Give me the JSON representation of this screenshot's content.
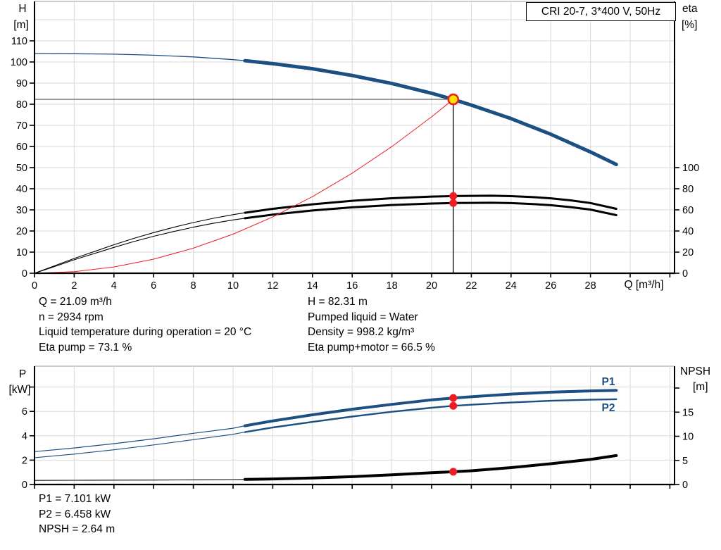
{
  "title_box": "CRI 20-7, 3*400 V, 50Hz",
  "labels": {
    "h": "H",
    "h_unit": "[m]",
    "eta": "eta",
    "eta_unit": "[%]",
    "q_axis": "Q [m³/h]",
    "p": "P",
    "p_unit": "[kW]",
    "npsh": "NPSH",
    "npsh_unit": "[m]",
    "p1": "P1",
    "p2": "P2"
  },
  "info": {
    "q_line": "Q = 21.09 m³/h",
    "n_line": "n = 2934 rpm",
    "temp_line": "Liquid temperature during operation = 20 °C",
    "eta_pump_line": "Eta pump = 73.1 %",
    "h_line": "H = 82.31 m",
    "liquid_line": "Pumped liquid = Water",
    "density_line": "Density = 998.2 kg/m³",
    "eta_total_line": "Eta pump+motor = 66.5 %",
    "p1_line": "P1 = 7.101 kW",
    "p2_line": "P2 = 6.458 kW",
    "npsh_line": "NPSH = 2.64 m"
  },
  "duty_point": {
    "q_m3h": 21.09,
    "h_m": 82.31,
    "eta_pump_pct": 73.1,
    "eta_pump_motor_pct": 66.5,
    "p1_kw": 7.101,
    "p2_kw": 6.458,
    "npsh_m": 2.64,
    "n_rpm": 2934
  },
  "chart_data": [
    {
      "name": "h-q-curve-chart",
      "type": "line",
      "x_axis": {
        "label": "Q [m³/h]",
        "ticks": [
          0,
          2,
          4,
          6,
          8,
          10,
          12,
          14,
          16,
          18,
          20,
          22,
          24,
          26,
          28
        ],
        "extra_ticks": [
          30,
          32
        ],
        "grid_step": 2,
        "show_labels": true
      },
      "y_left": {
        "label": "H [m]",
        "ticks": [
          0,
          10,
          20,
          30,
          40,
          50,
          60,
          70,
          80,
          90,
          100,
          110
        ],
        "extra_ticks": [],
        "grid_step": 10
      },
      "y_right": {
        "label": "eta [%]",
        "ticks": [
          0,
          20,
          40,
          60,
          80,
          100
        ],
        "extra_ticks": []
      },
      "series": [
        {
          "name": "eta-pump-curve",
          "axis": "right",
          "color": "#000000",
          "thin": 1.1,
          "thick": 3,
          "split": 10.6,
          "points": [
            [
              0,
              0
            ],
            [
              1,
              7
            ],
            [
              2,
              14
            ],
            [
              3,
              20.5
            ],
            [
              4,
              27
            ],
            [
              5,
              33
            ],
            [
              6,
              38.5
            ],
            [
              7,
              43.5
            ],
            [
              8,
              48
            ],
            [
              9,
              52
            ],
            [
              10,
              55.5
            ],
            [
              10.6,
              57.3
            ],
            [
              12,
              61
            ],
            [
              14,
              65.3
            ],
            [
              16,
              68.6
            ],
            [
              18,
              71
            ],
            [
              20,
              72.6
            ],
            [
              21.09,
              73.1
            ],
            [
              22,
              73.3
            ],
            [
              23,
              73.4
            ],
            [
              24,
              73
            ],
            [
              25,
              72.2
            ],
            [
              26,
              70.9
            ],
            [
              27,
              69
            ],
            [
              28,
              66.5
            ],
            [
              29.3,
              61
            ]
          ]
        },
        {
          "name": "eta-pump-motor-curve",
          "axis": "right",
          "color": "#000000",
          "thin": 1.1,
          "thick": 3,
          "split": 10.6,
          "points": [
            [
              0,
              0
            ],
            [
              1,
              6.3
            ],
            [
              2,
              12.7
            ],
            [
              3,
              18.6
            ],
            [
              4,
              24.5
            ],
            [
              5,
              30
            ],
            [
              6,
              35
            ],
            [
              7,
              39.5
            ],
            [
              8,
              43.6
            ],
            [
              9,
              47.3
            ],
            [
              10,
              50.5
            ],
            [
              10.6,
              52.1
            ],
            [
              12,
              55.5
            ],
            [
              14,
              59.4
            ],
            [
              16,
              62.4
            ],
            [
              18,
              64.6
            ],
            [
              20,
              66
            ],
            [
              21.09,
              66.5
            ],
            [
              22,
              66.6
            ],
            [
              23,
              66.7
            ],
            [
              24,
              66.4
            ],
            [
              25,
              65.6
            ],
            [
              26,
              64.4
            ],
            [
              27,
              62.6
            ],
            [
              28,
              60.3
            ],
            [
              29.3,
              55
            ]
          ]
        },
        {
          "name": "system-curve",
          "axis": "left",
          "color": "#ee1d23",
          "thin": 1,
          "thick": null,
          "split": null,
          "points": [
            [
              0,
              0
            ],
            [
              2,
              0.74
            ],
            [
              4,
              2.96
            ],
            [
              6,
              6.66
            ],
            [
              8,
              11.85
            ],
            [
              10,
              18.51
            ],
            [
              12,
              26.65
            ],
            [
              14,
              36.28
            ],
            [
              16,
              47.38
            ],
            [
              18,
              59.97
            ],
            [
              20,
              74.04
            ],
            [
              21.09,
              82.31
            ]
          ]
        },
        {
          "name": "pump-curve",
          "axis": "left",
          "color": "#1c4f82",
          "thin": 1.3,
          "thick": 5,
          "split": 10.6,
          "points": [
            [
              0,
              104
            ],
            [
              2,
              103.9
            ],
            [
              4,
              103.7
            ],
            [
              6,
              103.2
            ],
            [
              8,
              102.4
            ],
            [
              10,
              101.1
            ],
            [
              10.6,
              100.6
            ],
            [
              12,
              99.2
            ],
            [
              14,
              96.8
            ],
            [
              16,
              93.6
            ],
            [
              18,
              89.8
            ],
            [
              20,
              85.2
            ],
            [
              21.09,
              82.31
            ],
            [
              22,
              79.6
            ],
            [
              24,
              73.2
            ],
            [
              26,
              65.8
            ],
            [
              28,
              57.4
            ],
            [
              29.3,
              51.5
            ]
          ]
        }
      ],
      "crosshair": {
        "q": 21.09,
        "v": 82.31,
        "axis": "left"
      },
      "markers": [
        {
          "name": "eta-pump-point",
          "q": 21.09,
          "v": 73.1,
          "axis": "right",
          "r": 5.5,
          "fill": "#ee1d23",
          "stroke": "none",
          "stroke_width": 0
        },
        {
          "name": "eta-pump-motor-point",
          "q": 21.09,
          "v": 66.5,
          "axis": "right",
          "r": 5.5,
          "fill": "#ee1d23",
          "stroke": "none",
          "stroke_width": 0
        },
        {
          "name": "duty-point",
          "q": 21.09,
          "v": 82.31,
          "axis": "left",
          "r": 7,
          "fill": "#ffe400",
          "stroke": "#ee1d23",
          "stroke_width": 2.6
        }
      ]
    },
    {
      "name": "power-npsh-chart",
      "type": "line",
      "x_axis": {
        "label": "",
        "ticks": [
          0,
          2,
          4,
          6,
          8,
          10,
          12,
          14,
          16,
          18,
          20,
          22,
          24,
          26,
          28
        ],
        "extra_ticks": [
          30,
          32
        ],
        "grid_step": 2,
        "show_labels": false
      },
      "y_left": {
        "label": "P [kW]",
        "ticks": [
          0,
          2,
          4,
          6
        ],
        "extra_ticks": [
          8
        ],
        "grid_step": 2
      },
      "y_right": {
        "label": "NPSH [m]",
        "ticks": [
          0,
          5,
          10,
          15
        ],
        "extra_ticks": [
          20
        ]
      },
      "series": [
        {
          "name": "p2-curve",
          "axis": "left",
          "color": "#1c4f82",
          "thin": 1.1,
          "thick": 2.4,
          "split": 10.6,
          "points": [
            [
              0,
              2.2
            ],
            [
              2,
              2.5
            ],
            [
              4,
              2.85
            ],
            [
              6,
              3.25
            ],
            [
              8,
              3.68
            ],
            [
              10,
              4.12
            ],
            [
              10.6,
              4.3
            ],
            [
              12,
              4.68
            ],
            [
              14,
              5.14
            ],
            [
              16,
              5.58
            ],
            [
              18,
              5.97
            ],
            [
              20,
              6.3
            ],
            [
              21.09,
              6.458
            ],
            [
              22,
              6.55
            ],
            [
              24,
              6.73
            ],
            [
              26,
              6.87
            ],
            [
              28,
              6.96
            ],
            [
              29.3,
              7.0
            ]
          ]
        },
        {
          "name": "p1-curve",
          "axis": "left",
          "color": "#1c4f82",
          "thin": 1.2,
          "thick": 4,
          "split": 10.6,
          "points": [
            [
              0,
              2.7
            ],
            [
              2,
              3.0
            ],
            [
              4,
              3.35
            ],
            [
              6,
              3.75
            ],
            [
              8,
              4.2
            ],
            [
              10,
              4.62
            ],
            [
              10.6,
              4.82
            ],
            [
              12,
              5.22
            ],
            [
              14,
              5.72
            ],
            [
              16,
              6.18
            ],
            [
              18,
              6.58
            ],
            [
              20,
              6.95
            ],
            [
              21.09,
              7.101
            ],
            [
              22,
              7.2
            ],
            [
              24,
              7.42
            ],
            [
              26,
              7.58
            ],
            [
              28,
              7.68
            ],
            [
              29.3,
              7.72
            ]
          ]
        },
        {
          "name": "npsh-curve",
          "axis": "right",
          "color": "#000000",
          "thin": 1.1,
          "thick": 4,
          "split": 10.6,
          "points": [
            [
              0,
              0.85
            ],
            [
              2,
              0.87
            ],
            [
              4,
              0.9
            ],
            [
              6,
              0.92
            ],
            [
              8,
              0.96
            ],
            [
              10,
              1.02
            ],
            [
              10.6,
              1.05
            ],
            [
              12,
              1.15
            ],
            [
              14,
              1.35
            ],
            [
              16,
              1.62
            ],
            [
              18,
              2.0
            ],
            [
              20,
              2.45
            ],
            [
              21.09,
              2.64
            ],
            [
              22,
              2.85
            ],
            [
              24,
              3.5
            ],
            [
              26,
              4.3
            ],
            [
              28,
              5.2
            ],
            [
              29.3,
              6.0
            ]
          ]
        }
      ],
      "crosshair": null,
      "markers": [
        {
          "name": "p1-point",
          "q": 21.09,
          "v": 7.101,
          "axis": "left",
          "r": 5.5,
          "fill": "#ee1d23",
          "stroke": "none",
          "stroke_width": 0
        },
        {
          "name": "p2-point",
          "q": 21.09,
          "v": 6.458,
          "axis": "left",
          "r": 5.5,
          "fill": "#ee1d23",
          "stroke": "none",
          "stroke_width": 0
        },
        {
          "name": "npsh-point",
          "q": 21.09,
          "v": 2.64,
          "axis": "right",
          "r": 5.5,
          "fill": "#ee1d23",
          "stroke": "none",
          "stroke_width": 0
        }
      ]
    }
  ]
}
